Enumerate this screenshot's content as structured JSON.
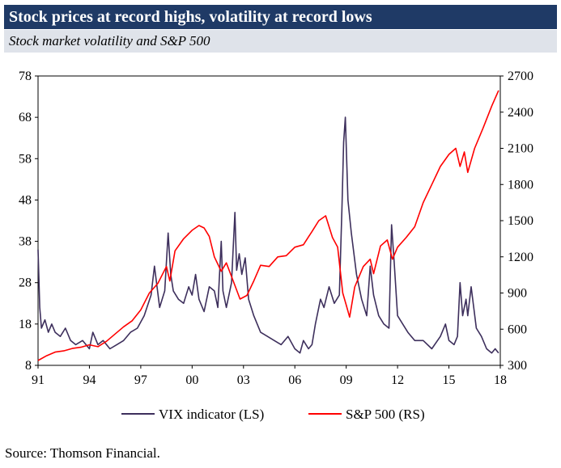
{
  "title": "Stock prices at record highs, volatility at record lows",
  "subtitle": "Stock market volatility and S&P 500",
  "source": "Source: Thomson Financial.",
  "colors": {
    "title_bg": "#1f3a66",
    "subtitle_bg": "#dfe3ea",
    "vix": "#3d2f5c",
    "sp500": "#ff0000"
  },
  "chart_data": {
    "type": "line",
    "title": "Stock prices at record highs, volatility at record lows",
    "subtitle": "Stock market volatility and S&P 500",
    "x_ticks": [
      "91",
      "94",
      "97",
      "00",
      "03",
      "06",
      "09",
      "12",
      "15",
      "18"
    ],
    "x_range": [
      1991,
      2018
    ],
    "y_left_ticks": [
      "78",
      "68",
      "58",
      "48",
      "38",
      "28",
      "18",
      "8"
    ],
    "y_left_range": [
      8,
      78
    ],
    "y_right_ticks": [
      "2700",
      "2400",
      "2100",
      "1800",
      "1500",
      "1200",
      "900",
      "600",
      "300"
    ],
    "y_right_range": [
      300,
      2700
    ],
    "grid": false,
    "legend_position": "bottom",
    "series": [
      {
        "name": "VIX indicator (LS)",
        "axis": "left",
        "x": [
          1991.0,
          1991.1,
          1991.2,
          1991.4,
          1991.6,
          1991.8,
          1992.0,
          1992.3,
          1992.6,
          1992.9,
          1993.2,
          1993.6,
          1994.0,
          1994.2,
          1994.5,
          1994.8,
          1995.2,
          1995.6,
          1996.0,
          1996.4,
          1996.8,
          1997.2,
          1997.6,
          1997.8,
          1998.1,
          1998.4,
          1998.6,
          1998.75,
          1998.9,
          1999.2,
          1999.5,
          1999.8,
          2000.0,
          2000.2,
          2000.4,
          2000.7,
          2001.0,
          2001.3,
          2001.5,
          2001.7,
          2001.8,
          2002.0,
          2002.3,
          2002.5,
          2002.6,
          2002.75,
          2002.9,
          2003.1,
          2003.3,
          2003.6,
          2004.0,
          2004.4,
          2004.8,
          2005.2,
          2005.6,
          2006.0,
          2006.3,
          2006.5,
          2006.8,
          2007.0,
          2007.2,
          2007.5,
          2007.7,
          2008.0,
          2008.3,
          2008.6,
          2008.75,
          2008.85,
          2008.95,
          2009.1,
          2009.3,
          2009.6,
          2009.9,
          2010.2,
          2010.4,
          2010.6,
          2010.9,
          2011.2,
          2011.5,
          2011.65,
          2011.8,
          2012.0,
          2012.3,
          2012.6,
          2013.0,
          2013.5,
          2014.0,
          2014.5,
          2014.8,
          2015.0,
          2015.3,
          2015.5,
          2015.65,
          2015.8,
          2016.0,
          2016.1,
          2016.3,
          2016.6,
          2016.9,
          2017.2,
          2017.5,
          2017.7,
          2017.9
        ],
        "values": [
          36,
          22,
          17,
          19,
          16,
          18,
          16,
          15,
          17,
          14,
          13,
          14,
          12,
          16,
          13,
          14,
          12,
          13,
          14,
          16,
          17,
          20,
          25,
          32,
          22,
          26,
          40,
          30,
          26,
          24,
          23,
          27,
          25,
          30,
          24,
          21,
          27,
          26,
          22,
          38,
          26,
          22,
          28,
          45,
          31,
          35,
          30,
          34,
          24,
          20,
          16,
          15,
          14,
          13,
          15,
          12,
          11,
          14,
          12,
          13,
          18,
          24,
          22,
          27,
          23,
          25,
          46,
          62,
          68,
          48,
          40,
          30,
          24,
          20,
          32,
          25,
          20,
          18,
          17,
          42,
          33,
          20,
          18,
          16,
          14,
          14,
          12,
          15,
          18,
          14,
          13,
          15,
          28,
          20,
          24,
          20,
          27,
          17,
          15,
          12,
          11,
          12,
          11
        ]
      },
      {
        "name": "S&P 500 (RS)",
        "axis": "right",
        "x": [
          1991.0,
          1991.5,
          1992.0,
          1992.5,
          1993.0,
          1993.5,
          1994.0,
          1994.5,
          1995.0,
          1995.5,
          1996.0,
          1996.5,
          1997.0,
          1997.5,
          1998.0,
          1998.5,
          1998.7,
          1999.0,
          1999.5,
          2000.0,
          2000.4,
          2000.7,
          2001.0,
          2001.3,
          2001.7,
          2002.0,
          2002.4,
          2002.8,
          2003.2,
          2003.6,
          2004.0,
          2004.5,
          2005.0,
          2005.5,
          2006.0,
          2006.5,
          2007.0,
          2007.4,
          2007.8,
          2008.2,
          2008.5,
          2008.8,
          2009.0,
          2009.2,
          2009.5,
          2010.0,
          2010.4,
          2010.6,
          2011.0,
          2011.4,
          2011.7,
          2012.0,
          2012.5,
          2013.0,
          2013.5,
          2014.0,
          2014.5,
          2015.0,
          2015.4,
          2015.65,
          2015.9,
          2016.1,
          2016.5,
          2017.0,
          2017.5,
          2017.9
        ],
        "values": [
          340,
          380,
          410,
          420,
          440,
          450,
          470,
          455,
          500,
          560,
          620,
          670,
          760,
          900,
          980,
          1120,
          1000,
          1250,
          1350,
          1420,
          1460,
          1440,
          1370,
          1200,
          1080,
          1150,
          1000,
          850,
          880,
          1000,
          1130,
          1120,
          1200,
          1210,
          1280,
          1300,
          1410,
          1500,
          1540,
          1360,
          1280,
          900,
          800,
          700,
          950,
          1120,
          1180,
          1060,
          1290,
          1340,
          1180,
          1280,
          1360,
          1450,
          1650,
          1800,
          1950,
          2050,
          2100,
          1950,
          2070,
          1900,
          2100,
          2270,
          2450,
          2580
        ]
      }
    ]
  }
}
